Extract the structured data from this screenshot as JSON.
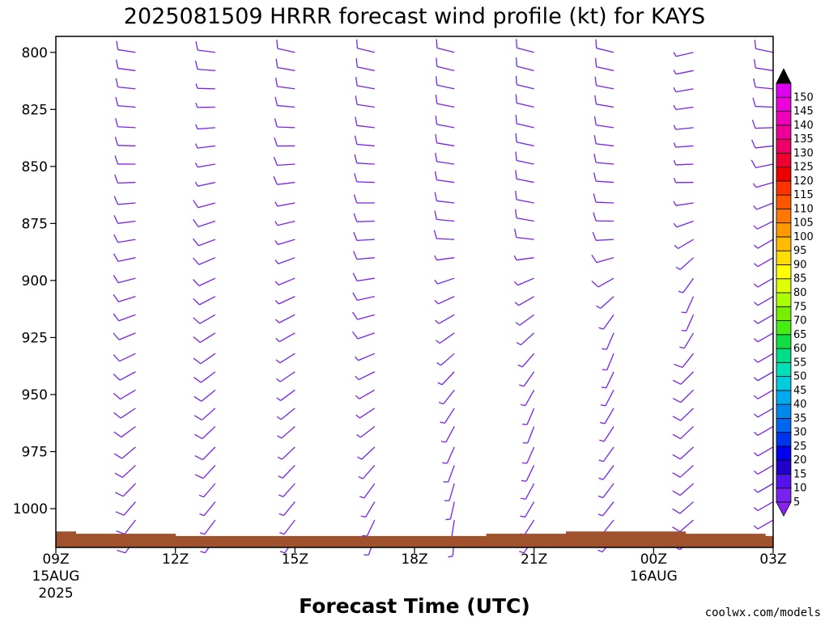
{
  "colors": {
    "barb": "#7722ee",
    "terrain": "#a0522d",
    "credit": "#cc2222"
  },
  "chart_data": {
    "type": "wind-barb-time-height",
    "title": "2025081509 HRRR forecast wind profile (kt) for KAYS",
    "xlabel": "Forecast Time (UTC)",
    "credit": "coolwx.com/models",
    "y_axis": {
      "quantity": "pressure (hPa)",
      "inverted": true,
      "ylim": [
        1017,
        793
      ],
      "ticks": [
        800,
        825,
        850,
        875,
        900,
        925,
        950,
        975,
        1000
      ]
    },
    "x_axis": {
      "xlim_hours": [
        0,
        18
      ],
      "ticks": [
        {
          "hour": 0,
          "label": "09Z",
          "sub": "15AUG",
          "sub2": "2025"
        },
        {
          "hour": 3,
          "label": "12Z"
        },
        {
          "hour": 6,
          "label": "15Z"
        },
        {
          "hour": 9,
          "label": "18Z"
        },
        {
          "hour": 12,
          "label": "21Z"
        },
        {
          "hour": 15,
          "label": "00Z",
          "sub": "16AUG"
        },
        {
          "hour": 18,
          "label": "03Z"
        }
      ]
    },
    "barb_columns_hours": [
      2,
      4,
      6,
      8,
      10,
      12,
      14,
      16,
      18
    ],
    "barb_levels_hpa": [
      792,
      800,
      808,
      816,
      824,
      833,
      841,
      849,
      857,
      866,
      874,
      882,
      890,
      899,
      907,
      915,
      923,
      932,
      940,
      948,
      956,
      964,
      973,
      981,
      989,
      997,
      1005,
      1013
    ],
    "wind_columns": [
      {
        "hour": 2,
        "profile": [
          {
            "p": 792,
            "dir": 280,
            "spd": 10
          },
          {
            "p": 850,
            "dir": 270,
            "spd": 10
          },
          {
            "p": 900,
            "dir": 255,
            "spd": 10
          },
          {
            "p": 960,
            "dir": 235,
            "spd": 10
          },
          {
            "p": 1013,
            "dir": 215,
            "spd": 10
          }
        ]
      },
      {
        "hour": 4,
        "profile": [
          {
            "p": 792,
            "dir": 280,
            "spd": 10
          },
          {
            "p": 835,
            "dir": 265,
            "spd": 5
          },
          {
            "p": 880,
            "dir": 250,
            "spd": 10
          },
          {
            "p": 950,
            "dir": 230,
            "spd": 10
          },
          {
            "p": 1013,
            "dir": 215,
            "spd": 5
          }
        ]
      },
      {
        "hour": 6,
        "profile": [
          {
            "p": 792,
            "dir": 285,
            "spd": 10
          },
          {
            "p": 840,
            "dir": 270,
            "spd": 10
          },
          {
            "p": 890,
            "dir": 250,
            "spd": 5
          },
          {
            "p": 960,
            "dir": 230,
            "spd": 5
          },
          {
            "p": 1013,
            "dir": 215,
            "spd": 5
          }
        ]
      },
      {
        "hour": 8,
        "profile": [
          {
            "p": 792,
            "dir": 285,
            "spd": 10
          },
          {
            "p": 890,
            "dir": 265,
            "spd": 10
          },
          {
            "p": 960,
            "dir": 235,
            "spd": 5
          },
          {
            "p": 1013,
            "dir": 200,
            "spd": 5
          }
        ]
      },
      {
        "hour": 10,
        "profile": [
          {
            "p": 792,
            "dir": 285,
            "spd": 10
          },
          {
            "p": 880,
            "dir": 275,
            "spd": 10
          },
          {
            "p": 900,
            "dir": 250,
            "spd": 5
          },
          {
            "p": 960,
            "dir": 210,
            "spd": 5
          },
          {
            "p": 1013,
            "dir": 185,
            "spd": 5
          }
        ]
      },
      {
        "hour": 12,
        "profile": [
          {
            "p": 792,
            "dir": 285,
            "spd": 10
          },
          {
            "p": 880,
            "dir": 280,
            "spd": 10
          },
          {
            "p": 900,
            "dir": 245,
            "spd": 5
          },
          {
            "p": 960,
            "dir": 200,
            "spd": 5
          },
          {
            "p": 1013,
            "dir": 215,
            "spd": 5
          }
        ]
      },
      {
        "hour": 14,
        "profile": [
          {
            "p": 792,
            "dir": 285,
            "spd": 10
          },
          {
            "p": 880,
            "dir": 270,
            "spd": 10
          },
          {
            "p": 925,
            "dir": 200,
            "spd": 5
          },
          {
            "p": 970,
            "dir": 215,
            "spd": 5
          },
          {
            "p": 1013,
            "dir": 220,
            "spd": 5
          }
        ]
      },
      {
        "hour": 16,
        "profile": [
          {
            "p": 792,
            "dir": 255,
            "spd": 5
          },
          {
            "p": 860,
            "dir": 270,
            "spd": 5
          },
          {
            "p": 910,
            "dir": 200,
            "spd": 5
          },
          {
            "p": 940,
            "dir": 225,
            "spd": 10
          },
          {
            "p": 1013,
            "dir": 230,
            "spd": 10
          }
        ]
      },
      {
        "hour": 18,
        "profile": [
          {
            "p": 792,
            "dir": 285,
            "spd": 10
          },
          {
            "p": 830,
            "dir": 270,
            "spd": 10
          },
          {
            "p": 880,
            "dir": 240,
            "spd": 5
          }
        ]
      }
    ],
    "terrain": [
      {
        "h0": 0,
        "h1": 0.5,
        "p": 1010
      },
      {
        "h0": 0.5,
        "h1": 3.0,
        "p": 1011
      },
      {
        "h0": 3.0,
        "h1": 10.8,
        "p": 1012
      },
      {
        "h0": 10.8,
        "h1": 12.8,
        "p": 1011
      },
      {
        "h0": 12.8,
        "h1": 15.8,
        "p": 1010
      },
      {
        "h0": 15.8,
        "h1": 17.8,
        "p": 1011
      },
      {
        "h0": 17.8,
        "h1": 18,
        "p": 1012
      }
    ],
    "colorbar": {
      "labels": [
        "5",
        "10",
        "15",
        "20",
        "25",
        "30",
        "35",
        "40",
        "45",
        "50",
        "55",
        "60",
        "65",
        "70",
        "75",
        "80",
        "85",
        "90",
        "95",
        "100",
        "105",
        "110",
        "115",
        "120",
        "125",
        "130",
        "135",
        "140",
        "145",
        "150"
      ],
      "colors": [
        "#7722ee",
        "#5511ee",
        "#2200cc",
        "#0000ee",
        "#0033ee",
        "#0066ee",
        "#0088ee",
        "#00aaee",
        "#00ccdd",
        "#00ddbb",
        "#00dd88",
        "#11dd44",
        "#44ee11",
        "#77ee00",
        "#aaff00",
        "#ddff00",
        "#ffff00",
        "#ffdd00",
        "#ffbb00",
        "#ff9900",
        "#ff7700",
        "#ff5500",
        "#ff3300",
        "#ee0000",
        "#ee0033",
        "#ee0066",
        "#ee0099",
        "#ee00bb",
        "#ee00dd",
        "#dd00ee"
      ],
      "low_color": "#8822ee",
      "high_color": "#000000"
    }
  }
}
